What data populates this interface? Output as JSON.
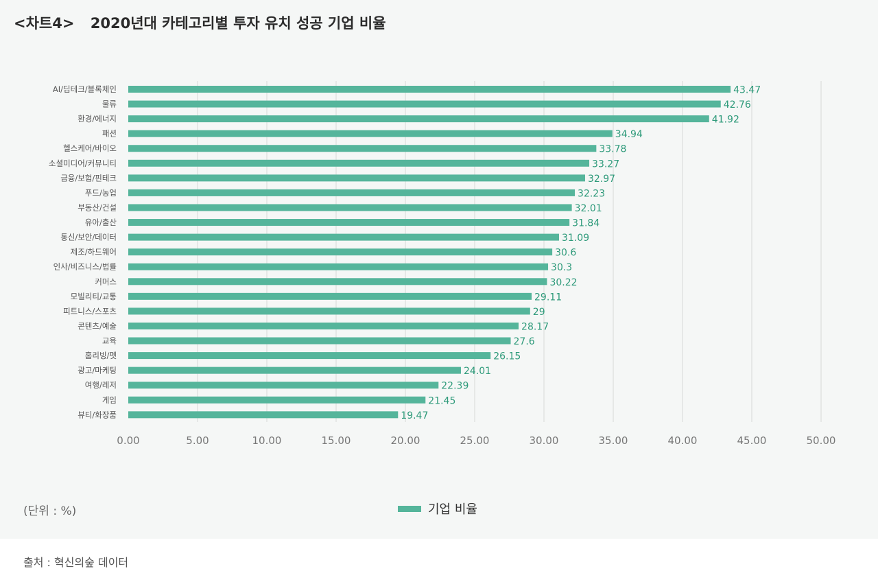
{
  "title": {
    "chart_number": "<차트4>",
    "text": "2020년대 카테고리별 투자 유치 성공 기업 비율"
  },
  "unit_note": "(단위 : %)",
  "legend_label": "기업 비율",
  "source": "출처 : 혁신의숲 데이터",
  "colors": {
    "bar": "#55b59b",
    "value_label": "#2e9a7a",
    "grid": "#dcdfdd"
  },
  "chart_data": {
    "type": "bar",
    "orientation": "horizontal",
    "categories": [
      "AI/딥테크/블록체인",
      "물류",
      "환경/에너지",
      "패션",
      "헬스케어/바이오",
      "소셜미디어/커뮤니티",
      "금융/보험/핀테크",
      "푸드/농업",
      "부동산/건설",
      "유아/출산",
      "통신/보안/데이터",
      "제조/하드웨어",
      "인사/비즈니스/법률",
      "커머스",
      "모빌리티/교통",
      "피트니스/스포츠",
      "콘텐츠/예술",
      "교육",
      "홈리빙/펫",
      "광고/마케팅",
      "여행/레저",
      "게임",
      "뷰티/화장품"
    ],
    "series": [
      {
        "name": "기업 비율",
        "values": [
          43.47,
          42.76,
          41.92,
          34.94,
          33.78,
          33.27,
          32.97,
          32.23,
          32.01,
          31.84,
          31.09,
          30.6,
          30.3,
          30.22,
          29.11,
          29,
          28.17,
          27.6,
          26.15,
          24.01,
          22.39,
          21.45,
          19.47
        ]
      }
    ],
    "value_labels": [
      "43.47",
      "42.76",
      "41.92",
      "34.94",
      "33.78",
      "33.27",
      "32.97",
      "32.23",
      "32.01",
      "31.84",
      "31.09",
      "30.6",
      "30.3",
      "30.22",
      "29.11",
      "29",
      "28.17",
      "27.6",
      "26.15",
      "24.01",
      "22.39",
      "21.45",
      "19.47"
    ],
    "xlim": [
      0,
      50
    ],
    "x_ticks": [
      "0.00",
      "5.00",
      "10.00",
      "15.00",
      "20.00",
      "25.00",
      "30.00",
      "35.00",
      "40.00",
      "45.00",
      "50.00"
    ],
    "grid": "vertical",
    "legend_position": "bottom-center"
  }
}
